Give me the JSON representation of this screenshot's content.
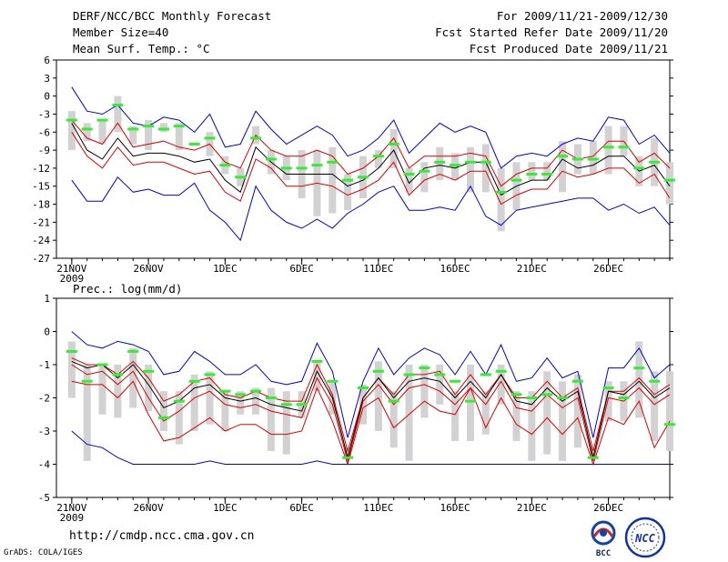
{
  "header": {
    "title": "DERF/NCC/BCC Monthly Forecast",
    "member_size": "Member Size=40",
    "variable": "Mean Surf. Temp.: °C",
    "period": "For 2009/11/21-2009/12/30",
    "fcst_started": "Fcst Started Refer Date 2009/11/20",
    "fcst_produced": "Fcst Produced Date 2009/11/21"
  },
  "footer": {
    "url": "http://cmdp.ncc.cma.gov.cn",
    "credit": "GrADS: COLA/IGES",
    "logo_bcc": "BCC",
    "logo_ncc": "NCC"
  },
  "colors": {
    "mean": "#000000",
    "spread": "#dd0000",
    "envelope": "#0000dd",
    "box": "#d2d2d2",
    "obs": "#33ee33"
  },
  "chart_data": [
    {
      "type": "line",
      "title": "Mean Surf. Temp.: °C",
      "ylim": [
        -27,
        6
      ],
      "yticks": [
        6,
        3,
        0,
        -3,
        -6,
        -9,
        -12,
        -15,
        -18,
        -21,
        -24,
        -27
      ],
      "xlim": [
        0,
        40
      ],
      "xticks": [
        {
          "x": 1,
          "label": "21NOV",
          "sub": "2009"
        },
        {
          "x": 6,
          "label": "26NOV"
        },
        {
          "x": 11,
          "label": "1DEC"
        },
        {
          "x": 16,
          "label": "6DEC"
        },
        {
          "x": 21,
          "label": "11DEC"
        },
        {
          "x": 26,
          "label": "16DEC"
        },
        {
          "x": 31,
          "label": "21DEC"
        },
        {
          "x": 36,
          "label": "26DEC"
        }
      ],
      "series": [
        {
          "name": "max",
          "values": [
            1.5,
            -2.5,
            -3,
            -1.5,
            -4.5,
            -5,
            -3.5,
            -4,
            -6,
            -3,
            -8.5,
            -8,
            -2.5,
            -5.5,
            -8,
            -6.5,
            -5,
            -6.5,
            -10,
            -9,
            -7,
            -4,
            -9.5,
            -7,
            -4.5,
            -6,
            -5,
            -6,
            -12,
            -10,
            -9.5,
            -10,
            -8,
            -7,
            -7.5,
            -3.5,
            -4,
            -8,
            -6.5,
            -9.5
          ]
        },
        {
          "name": "upper",
          "values": [
            -4,
            -7,
            -8,
            -4.5,
            -8.5,
            -8,
            -7.5,
            -8.5,
            -9,
            -8,
            -11,
            -12,
            -6.5,
            -9,
            -10,
            -10,
            -9,
            -10,
            -13,
            -12,
            -10,
            -7,
            -12,
            -10,
            -10,
            -10,
            -9.5,
            -10,
            -15,
            -13,
            -12,
            -12,
            -9,
            -10.5,
            -10,
            -7.5,
            -7.5,
            -11,
            -9.5,
            -12
          ]
        },
        {
          "name": "mean",
          "values": [
            -4.5,
            -9,
            -10.5,
            -7,
            -10,
            -9.5,
            -9.5,
            -10,
            -11,
            -10.5,
            -14,
            -16,
            -8.5,
            -11,
            -13,
            -13,
            -13,
            -13,
            -15,
            -14,
            -12,
            -9,
            -14.5,
            -12,
            -11.5,
            -12,
            -11,
            -11,
            -16.5,
            -15,
            -14,
            -14,
            -10.5,
            -12,
            -11.5,
            -10,
            -10,
            -12.5,
            -11.5,
            -15
          ]
        },
        {
          "name": "lower",
          "values": [
            -6,
            -10,
            -12,
            -8.5,
            -11.5,
            -11,
            -11,
            -12,
            -13,
            -12.5,
            -16,
            -17.5,
            -10.5,
            -12,
            -15,
            -15,
            -14.5,
            -15,
            -16.5,
            -15.5,
            -14,
            -11,
            -16.5,
            -14,
            -13,
            -14,
            -12.5,
            -12.5,
            -18,
            -16.5,
            -15.5,
            -15.5,
            -12.5,
            -13.5,
            -13,
            -12,
            -12,
            -14.5,
            -13,
            -17
          ]
        },
        {
          "name": "min",
          "values": [
            -14,
            -17.5,
            -17.5,
            -13.5,
            -16,
            -15.5,
            -16.5,
            -16.5,
            -14.5,
            -19,
            -21,
            -24,
            -15,
            -19,
            -21,
            -22,
            -20.5,
            -22,
            -19.5,
            -18,
            -16,
            -15,
            -19,
            -19,
            -18.5,
            -19,
            -15,
            -20,
            -21.5,
            -19,
            -18.5,
            -18,
            -17.5,
            -17,
            -17,
            -19,
            -18,
            -19.5,
            -18.5,
            -21.5
          ]
        },
        {
          "name": "box_top",
          "values": [
            -2.5,
            -4.5,
            -4,
            0,
            -5,
            -4,
            -4.5,
            -4.5,
            -8,
            -6,
            -10,
            -12,
            -5,
            -9,
            -10,
            -9,
            -9,
            -8.5,
            -13,
            -10,
            -9,
            -5.5,
            -12,
            -11,
            -8.5,
            -9.5,
            -8.5,
            -8,
            -12,
            -11,
            -11,
            -11,
            -7.5,
            -8,
            -7.5,
            -5,
            -5,
            -10,
            -7,
            -11
          ]
        },
        {
          "name": "box_bottom",
          "values": [
            -9,
            -7.5,
            -8,
            -6,
            -8,
            -9,
            -6,
            -9,
            -8,
            -10,
            -13,
            -15,
            -8,
            -13,
            -14,
            -17,
            -20,
            -19.5,
            -19,
            -17,
            -12,
            -12,
            -16,
            -16,
            -14,
            -14,
            -16,
            -16,
            -22.5,
            -19,
            -14,
            -14,
            -16,
            -13,
            -13,
            -13,
            -10,
            -15,
            -15,
            -18
          ]
        },
        {
          "name": "obs",
          "values": [
            -4,
            -5.5,
            -4,
            -1.5,
            -5.5,
            -5,
            -5.5,
            -5,
            -8,
            -7,
            -11.5,
            -13.5,
            -7,
            -10.5,
            -12,
            -12,
            -11.5,
            -11,
            -14,
            -13.5,
            -10,
            -8,
            -13,
            -12.5,
            -11,
            -11.5,
            -11,
            -11,
            -16,
            -14,
            -13,
            -13,
            -10,
            -10.5,
            -10.5,
            -8.5,
            -8.5,
            -12,
            -11,
            -14
          ]
        }
      ]
    },
    {
      "type": "line",
      "title": "Prec.: log(mm/d)",
      "ylim": [
        -5,
        1
      ],
      "yticks": [
        1,
        0,
        -1,
        -2,
        -3,
        -4,
        -5
      ],
      "xlim": [
        0,
        40
      ],
      "xticks": [
        {
          "x": 1,
          "label": "21NOV",
          "sub": "2009"
        },
        {
          "x": 6,
          "label": "26NOV"
        },
        {
          "x": 11,
          "label": "1DEC"
        },
        {
          "x": 16,
          "label": "6DEC"
        },
        {
          "x": 21,
          "label": "11DEC"
        },
        {
          "x": 26,
          "label": "16DEC"
        },
        {
          "x": 31,
          "label": "21DEC"
        },
        {
          "x": 36,
          "label": "26DEC"
        }
      ],
      "series": [
        {
          "name": "max",
          "values": [
            0,
            -0.4,
            -0.5,
            -0.3,
            -0.4,
            -0.6,
            -1.3,
            -1.2,
            -0.6,
            -0.9,
            -1.3,
            -1.3,
            -1.0,
            -1.5,
            -1.6,
            -1.5,
            -0.35,
            -1.2,
            -3.2,
            -1.5,
            -0.5,
            -1.3,
            -0.8,
            -0.5,
            -0.7,
            -1.3,
            -0.6,
            -1.3,
            -0.4,
            -1.5,
            -1.4,
            -0.8,
            -1.4,
            -1.2,
            -3.2,
            -1.1,
            -1.1,
            -0.5,
            -1.4,
            -1.0
          ]
        },
        {
          "name": "upper",
          "values": [
            -0.8,
            -1.0,
            -1.0,
            -1.3,
            -0.9,
            -1.4,
            -2.1,
            -1.9,
            -1.5,
            -1.4,
            -1.9,
            -2.0,
            -1.8,
            -2.0,
            -2.1,
            -2.1,
            -1.0,
            -1.9,
            -3.6,
            -2.0,
            -1.4,
            -1.9,
            -1.3,
            -1.3,
            -1.2,
            -1.9,
            -1.3,
            -1.9,
            -1.3,
            -2.0,
            -2.0,
            -1.5,
            -2.0,
            -1.7,
            -3.6,
            -1.8,
            -1.8,
            -1.4,
            -1.9,
            -1.6
          ]
        },
        {
          "name": "mean",
          "values": [
            -0.9,
            -1.1,
            -1.0,
            -1.4,
            -1.0,
            -1.6,
            -2.3,
            -2.1,
            -1.7,
            -1.6,
            -2.0,
            -2.1,
            -2.0,
            -2.2,
            -2.3,
            -2.4,
            -1.2,
            -2.0,
            -3.8,
            -2.0,
            -1.4,
            -2.0,
            -1.5,
            -1.4,
            -1.5,
            -2.0,
            -1.5,
            -2.0,
            -1.3,
            -2.1,
            -2.2,
            -1.7,
            -2.1,
            -1.8,
            -3.8,
            -1.8,
            -1.9,
            -1.5,
            -2.0,
            -1.7
          ]
        },
        {
          "name": "lower",
          "values": [
            -1.0,
            -1.3,
            -1.2,
            -1.6,
            -1.2,
            -2.0,
            -2.7,
            -2.4,
            -2.0,
            -1.8,
            -2.2,
            -2.3,
            -2.2,
            -2.4,
            -2.5,
            -2.6,
            -1.4,
            -2.2,
            -3.9,
            -2.1,
            -1.6,
            -2.2,
            -1.7,
            -1.6,
            -1.8,
            -2.2,
            -1.7,
            -2.2,
            -1.5,
            -2.3,
            -2.4,
            -1.9,
            -2.3,
            -2.0,
            -3.9,
            -2.0,
            -2.1,
            -1.7,
            -2.2,
            -1.9
          ]
        },
        {
          "name": "lowest",
          "values": [
            -1.5,
            -1.6,
            -1.6,
            -2.0,
            -1.5,
            -2.5,
            -3.3,
            -3.2,
            -2.9,
            -2.6,
            -3.0,
            -2.8,
            -2.8,
            -3.1,
            -3.1,
            -3.0,
            -1.7,
            -2.7,
            -4.0,
            -2.3,
            -2.0,
            -2.9,
            -2.5,
            -2.1,
            -2.4,
            -2.5,
            -1.7,
            -2.9,
            -2.0,
            -2.8,
            -3.1,
            -2.6,
            -3.1,
            -2.6,
            -4.0,
            -2.6,
            -2.8,
            -2.1,
            -3.5,
            -2.7
          ]
        },
        {
          "name": "min",
          "values": [
            -3.0,
            -3.4,
            -3.5,
            -3.8,
            -4.0,
            -4.0,
            -4.0,
            -4.0,
            -4.0,
            -3.9,
            -4.0,
            -4.0,
            -4.0,
            -4.0,
            -4.0,
            -4.0,
            -3.9,
            -4.0,
            -4.0,
            -4.0,
            -4.0,
            -4.0,
            -4.0,
            -4.0,
            -4.0,
            -4.0,
            -4.0,
            -4.0,
            -4.0,
            -4.0,
            -4.0,
            -4.0,
            -4.0,
            -4.0,
            -4.0,
            -4.0,
            -4.0,
            -4.0,
            -4.0,
            -4.0
          ]
        },
        {
          "name": "box_top",
          "values": [
            -0.3,
            -1.0,
            -1.0,
            -1.0,
            -0.5,
            -1.0,
            -1.8,
            -1.8,
            -1.3,
            -1.2,
            -1.8,
            -1.8,
            -1.7,
            -1.7,
            -1.8,
            -1.8,
            -0.9,
            -1.5,
            -3.5,
            -1.6,
            -0.9,
            -1.8,
            -1.0,
            -1.0,
            -1.0,
            -1.8,
            -1.0,
            -1.8,
            -1.0,
            -1.8,
            -1.8,
            -1.2,
            -1.5,
            -1.3,
            -3.5,
            -1.5,
            -1.5,
            -0.3,
            -1.2,
            -1.2
          ]
        },
        {
          "name": "box_bottom",
          "values": [
            -2.0,
            -3.9,
            -2.5,
            -2.6,
            -2.3,
            -2.4,
            -3.0,
            -3.4,
            -3.0,
            -2.8,
            -3.0,
            -2.5,
            -2.5,
            -3.6,
            -3.7,
            -2.6,
            -1.8,
            -2.5,
            -3.8,
            -2.8,
            -3.0,
            -3.5,
            -3.9,
            -2.6,
            -2.2,
            -3.3,
            -3.3,
            -3.1,
            -2.2,
            -3.3,
            -3.9,
            -3.7,
            -3.9,
            -3.5,
            -3.8,
            -2.7,
            -2.7,
            -2.6,
            -3.3,
            -3.6
          ]
        },
        {
          "name": "obs",
          "values": [
            -0.6,
            -1.5,
            -1.0,
            -1.3,
            -0.6,
            -1.2,
            -2.6,
            -2.1,
            -1.5,
            -1.3,
            -1.8,
            -1.9,
            -1.8,
            -2.0,
            -2.2,
            -2.2,
            -0.9,
            -1.5,
            -3.8,
            -1.7,
            -1.2,
            -2.1,
            -1.3,
            -1.1,
            -1.3,
            -1.5,
            -2.1,
            -1.3,
            -1.2,
            -1.9,
            -2.0,
            -1.9,
            -2.0,
            -1.5,
            -3.8,
            -1.7,
            -2.0,
            -1.1,
            -1.5,
            -2.8
          ]
        }
      ]
    }
  ]
}
